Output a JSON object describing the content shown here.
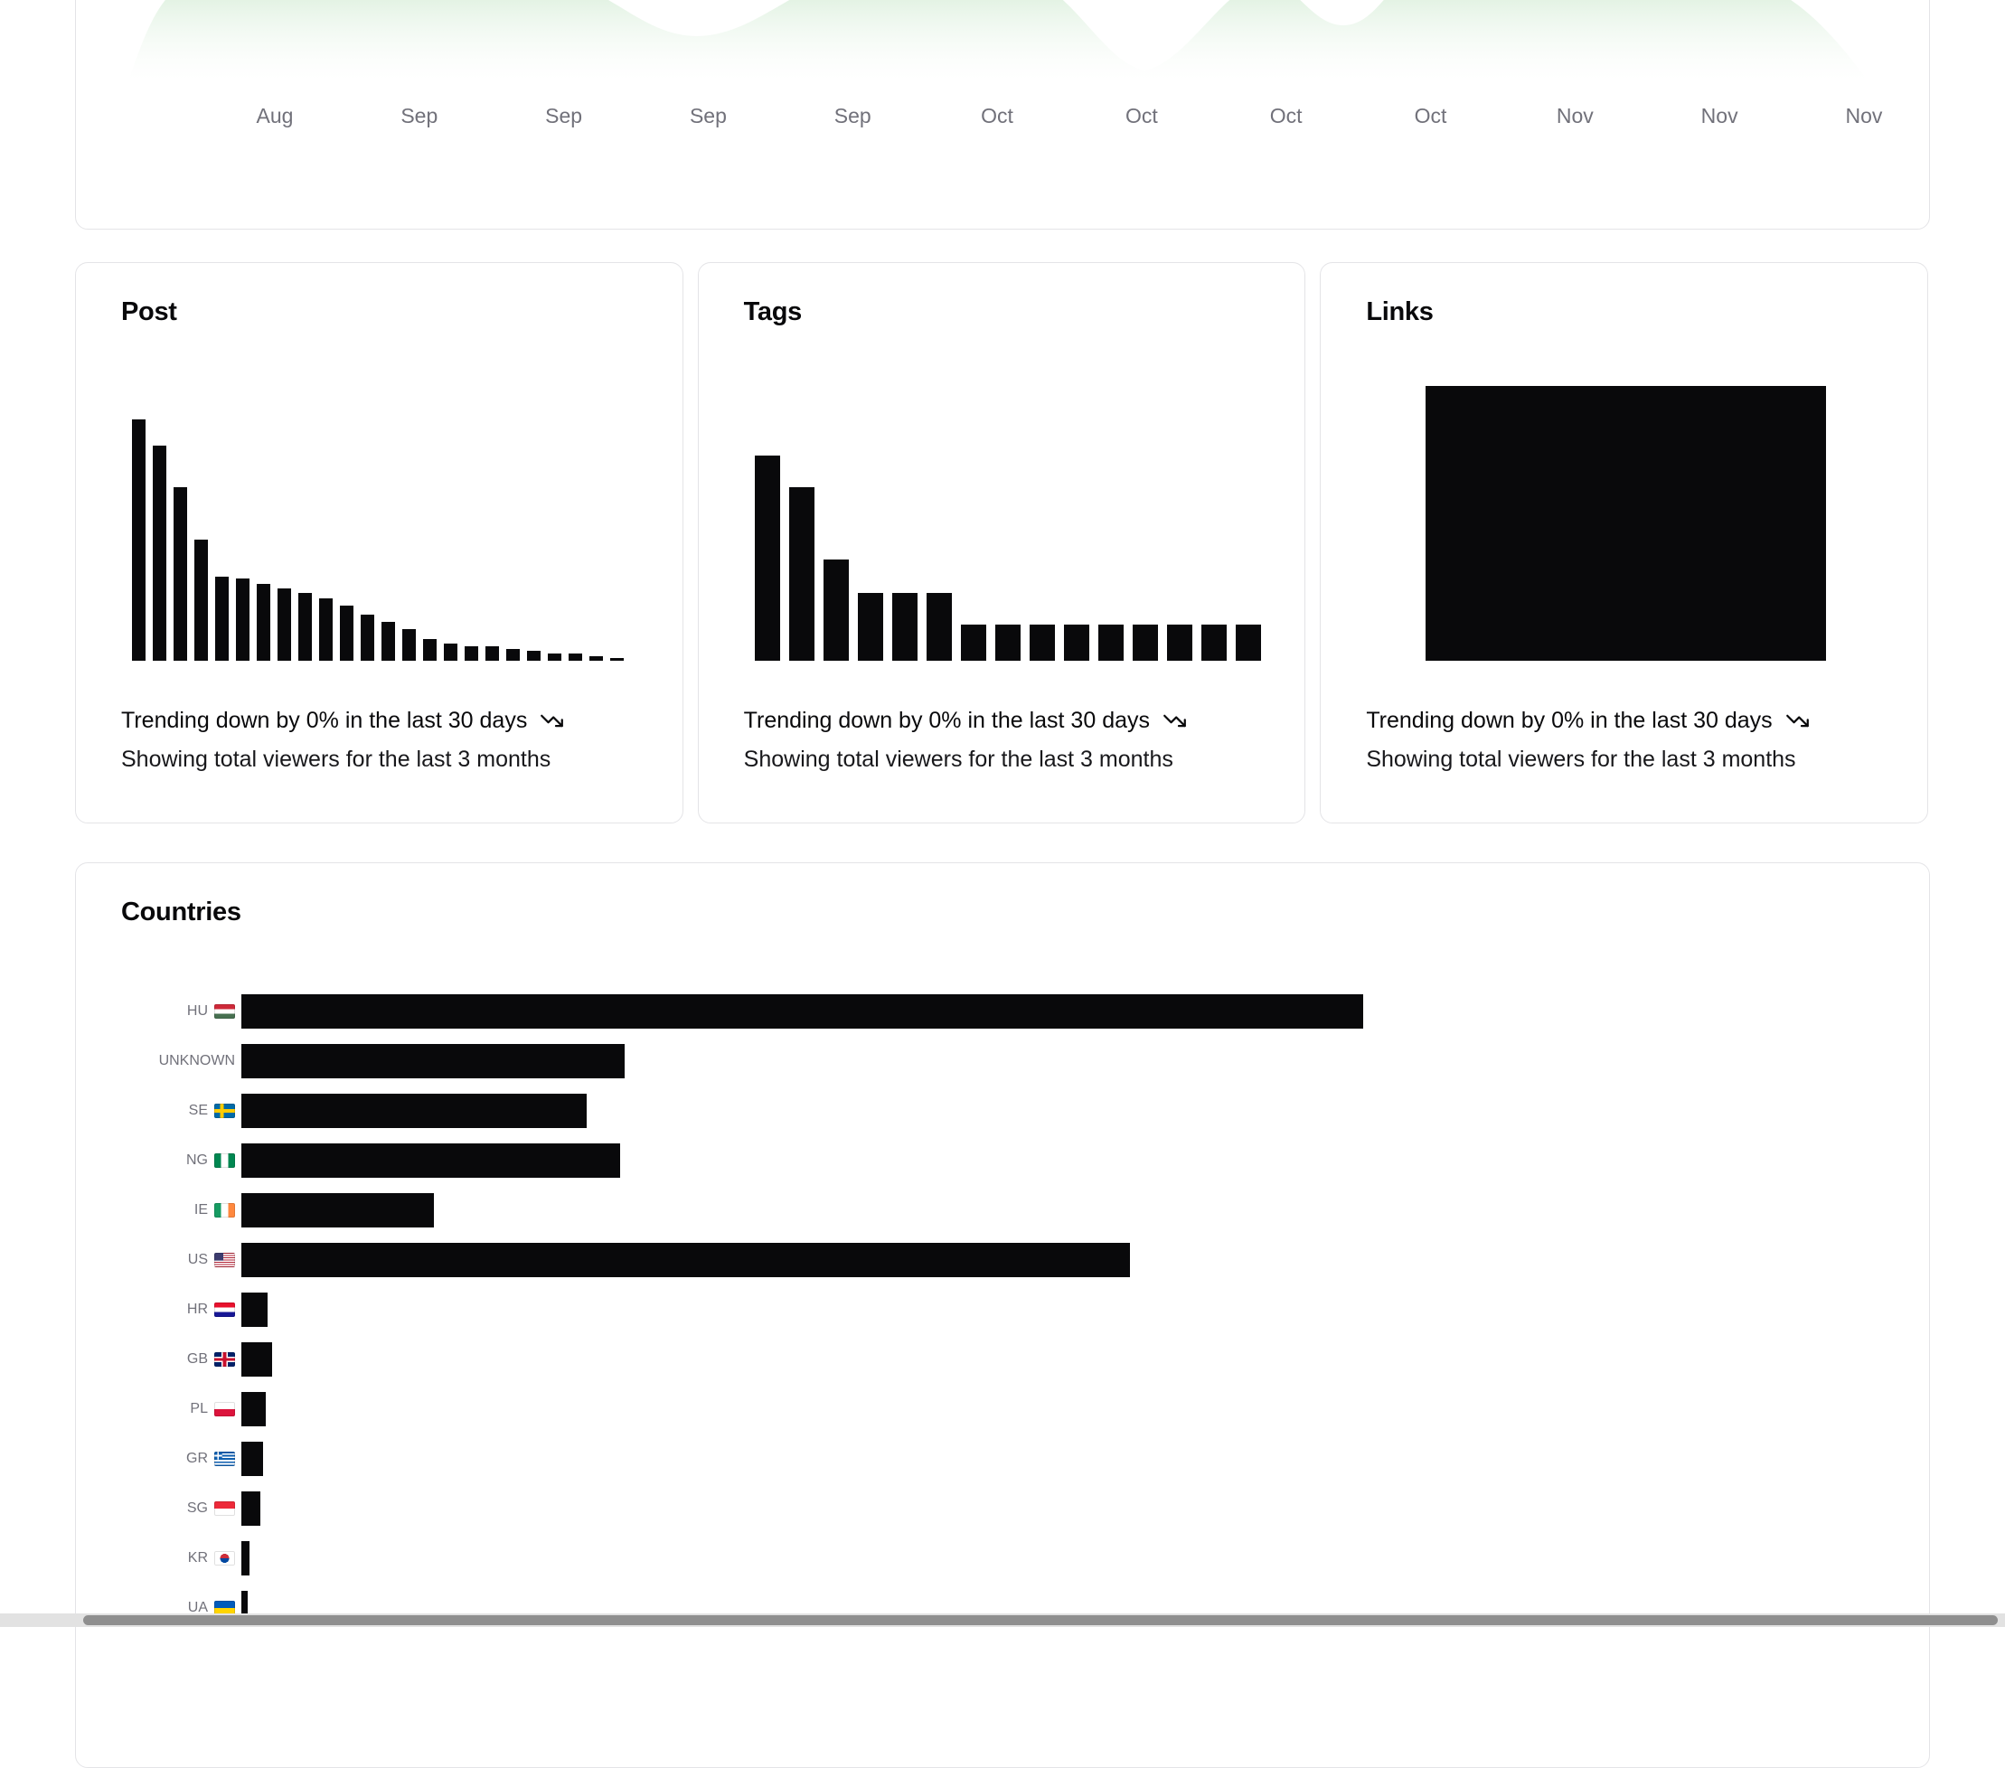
{
  "colors": {
    "bar": "#09090b",
    "text": "#09090b",
    "muted": "#71717a",
    "card_border": "#e4e4e7",
    "area_top": "#d4ecd5",
    "area_bottom": "#ffffff"
  },
  "viewers_chart": {
    "x_labels": [
      "Aug",
      "Sep",
      "Sep",
      "Sep",
      "Sep",
      "Oct",
      "Oct",
      "Oct",
      "Oct",
      "Nov",
      "Nov",
      "Nov"
    ]
  },
  "stat_cards": [
    {
      "title": "Post",
      "chart_id": "post",
      "trend_text": "Trending down by 0% in the last 30 days",
      "subtitle": "Showing total viewers for the last 3 months"
    },
    {
      "title": "Tags",
      "chart_id": "tags",
      "trend_text": "Trending down by 0% in the last 30 days",
      "subtitle": "Showing total viewers for the last 3 months"
    },
    {
      "title": "Links",
      "chart_id": "links",
      "trend_text": "Trending down by 0% in the last 30 days",
      "subtitle": "Showing total viewers for the last 3 months"
    }
  ],
  "countries": {
    "title": "Countries",
    "rows": [
      {
        "code": "HU",
        "flag": "hu"
      },
      {
        "code": "UNKNOWN",
        "flag": null
      },
      {
        "code": "SE",
        "flag": "se"
      },
      {
        "code": "NG",
        "flag": "ng"
      },
      {
        "code": "IE",
        "flag": "ie"
      },
      {
        "code": "US",
        "flag": "us"
      },
      {
        "code": "HR",
        "flag": "hr"
      },
      {
        "code": "GB",
        "flag": "gb"
      },
      {
        "code": "PL",
        "flag": "pl"
      },
      {
        "code": "GR",
        "flag": "gr"
      },
      {
        "code": "SG",
        "flag": "sg"
      },
      {
        "code": "KR",
        "flag": "kr"
      },
      {
        "code": "UA",
        "flag": "ua"
      }
    ]
  },
  "chart_data": [
    {
      "id": "area_viewers",
      "type": "area",
      "title": "",
      "x": [
        "Aug",
        "Sep",
        "Sep",
        "Sep",
        "Sep",
        "Oct",
        "Oct",
        "Oct",
        "Oct",
        "Nov",
        "Nov",
        "Nov"
      ],
      "series": [
        {
          "name": "Total viewers",
          "values": [
            100,
            100,
            100,
            60,
            100,
            100,
            12,
            72,
            100,
            100,
            100,
            10
          ]
        }
      ],
      "ylim": [
        0,
        100
      ],
      "units": "relative (no y-axis labels shown; top of curve clipped by viewport)",
      "grid": false,
      "legend": false
    },
    {
      "id": "post",
      "type": "bar",
      "title": "Post",
      "values": [
        100,
        89,
        72,
        50,
        35,
        34,
        32,
        30,
        28,
        26,
        23,
        19,
        16,
        13,
        9,
        7,
        6,
        6,
        5,
        4,
        3,
        3,
        2,
        1
      ],
      "units": "relative heights, unlabeled axes",
      "grid": false
    },
    {
      "id": "tags",
      "type": "bar",
      "title": "Tags",
      "values": [
        85,
        72,
        42,
        28,
        28,
        28,
        15,
        15,
        15,
        15,
        15,
        15,
        15,
        15,
        15
      ],
      "units": "relative heights, unlabeled axes",
      "grid": false
    },
    {
      "id": "links",
      "type": "bar",
      "title": "Links",
      "appearance": "solid_black_block",
      "values": [
        100,
        100,
        100,
        100,
        100,
        100,
        100,
        100,
        100,
        100,
        100,
        100
      ],
      "units": "chart area rendered as a fully-filled black block",
      "grid": false
    },
    {
      "id": "countries",
      "type": "bar",
      "orientation": "horizontal",
      "title": "Countries",
      "categories": [
        "HU",
        "UNKNOWN",
        "SE",
        "NG",
        "IE",
        "US",
        "HR",
        "GB",
        "PL",
        "GR",
        "SG",
        "KR",
        "UA"
      ],
      "values": [
        100,
        34.2,
        30.8,
        33.8,
        17.2,
        79.2,
        2.3,
        2.7,
        2.2,
        1.9,
        1.7,
        0.7,
        0.6
      ],
      "units": "relative widths, unlabeled axis",
      "grid": false
    }
  ]
}
